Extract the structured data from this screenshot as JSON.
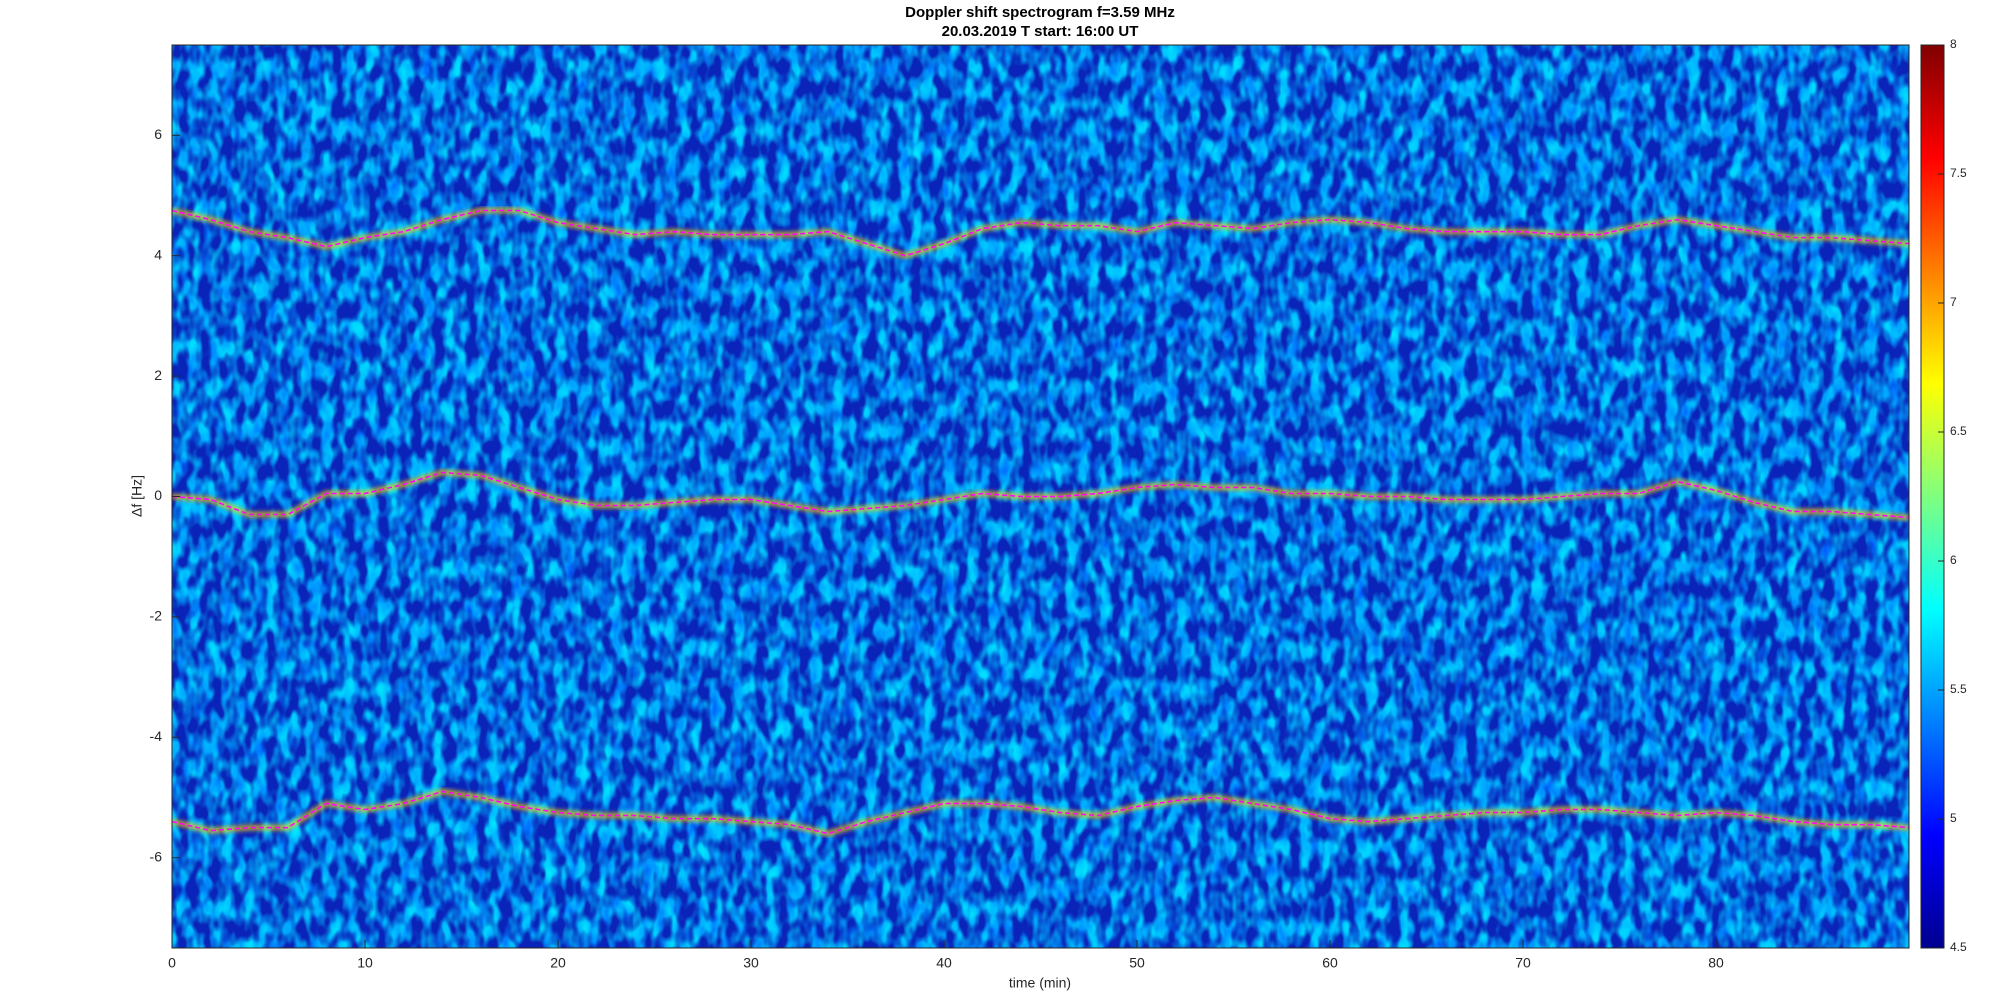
{
  "chart_data": {
    "type": "line",
    "title": "Doppler shift spectrogram f=3.59 MHz",
    "subtitle": "20.03.2019    T start: 16:00 UT",
    "x_label": "time (min)",
    "y_label": "Δf [Hz]",
    "xlim": [
      0,
      90
    ],
    "ylim": [
      -7.5,
      7.5
    ],
    "xticks": [
      0,
      10,
      20,
      30,
      40,
      50,
      60,
      70,
      80
    ],
    "yticks": [
      -6,
      -4,
      -2,
      0,
      2,
      4,
      6
    ],
    "background_color": "#0a23b8",
    "colormap": "jet",
    "clim": [
      4.5,
      8
    ],
    "cticks": [
      4.5,
      5,
      5.5,
      6,
      6.5,
      7,
      7.5,
      8
    ],
    "x": [
      0,
      2,
      4,
      6,
      8,
      10,
      12,
      14,
      16,
      18,
      20,
      22,
      24,
      26,
      28,
      30,
      32,
      34,
      36,
      38,
      40,
      42,
      44,
      46,
      48,
      50,
      52,
      54,
      56,
      58,
      60,
      62,
      64,
      66,
      68,
      70,
      72,
      74,
      76,
      78,
      80,
      82,
      84,
      86,
      88,
      90
    ],
    "series": [
      {
        "color": "#ff00ff",
        "values": [
          4.75,
          4.6,
          4.4,
          4.3,
          4.15,
          4.3,
          4.4,
          4.6,
          4.75,
          4.75,
          4.55,
          4.45,
          4.35,
          4.4,
          4.35,
          4.35,
          4.35,
          4.4,
          4.2,
          4.0,
          4.2,
          4.45,
          4.55,
          4.5,
          4.5,
          4.4,
          4.55,
          4.5,
          4.45,
          4.55,
          4.6,
          4.55,
          4.45,
          4.4,
          4.4,
          4.4,
          4.35,
          4.35,
          4.5,
          4.6,
          4.5,
          4.4,
          4.3,
          4.3,
          4.25,
          4.2
        ]
      },
      {
        "color": "#ff00ff",
        "values": [
          0,
          -0.05,
          -0.3,
          -0.3,
          0.05,
          0.05,
          0.2,
          0.4,
          0.35,
          0.15,
          -0.05,
          -0.15,
          -0.15,
          -0.1,
          -0.05,
          -0.05,
          -0.15,
          -0.25,
          -0.2,
          -0.15,
          -0.05,
          0.05,
          0,
          0,
          0.05,
          0.15,
          0.2,
          0.15,
          0.15,
          0.05,
          0.05,
          0,
          0,
          -0.05,
          -0.05,
          -0.05,
          0,
          0.05,
          0.05,
          0.25,
          0.1,
          -0.1,
          -0.25,
          -0.25,
          -0.3,
          -0.35
        ]
      },
      {
        "color": "#ff00ff",
        "values": [
          -5.4,
          -5.55,
          -5.5,
          -5.5,
          -5.1,
          -5.2,
          -5.1,
          -4.9,
          -5.0,
          -5.15,
          -5.25,
          -5.3,
          -5.3,
          -5.35,
          -5.35,
          -5.4,
          -5.45,
          -5.6,
          -5.4,
          -5.25,
          -5.1,
          -5.1,
          -5.15,
          -5.25,
          -5.3,
          -5.15,
          -5.05,
          -5.0,
          -5.1,
          -5.2,
          -5.35,
          -5.4,
          -5.35,
          -5.3,
          -5.25,
          -5.25,
          -5.2,
          -5.2,
          -5.25,
          -5.3,
          -5.25,
          -5.3,
          -5.4,
          -5.45,
          -5.45,
          -5.5
        ]
      }
    ]
  }
}
